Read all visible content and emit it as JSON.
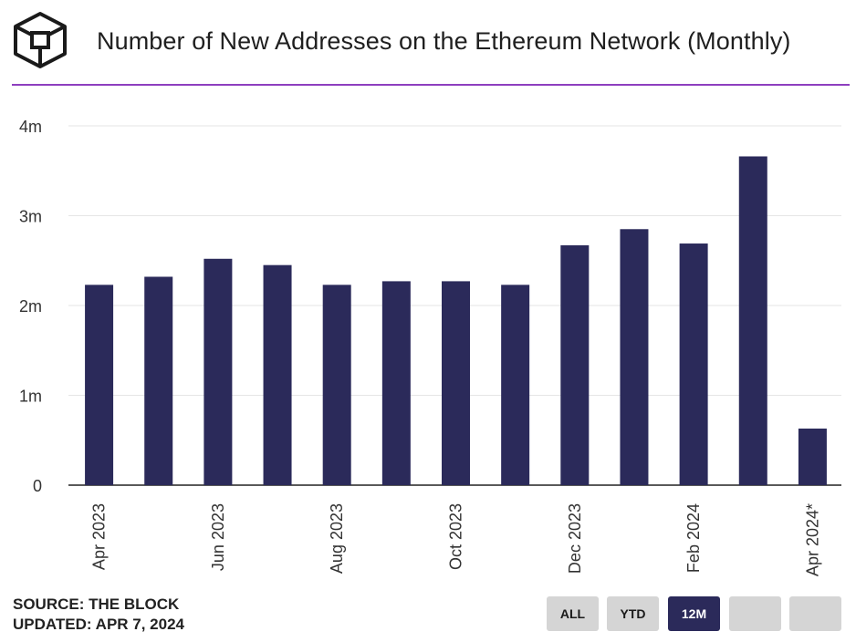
{
  "header": {
    "title": "Number of New Addresses on the Ethereum Network (Monthly)"
  },
  "colors": {
    "bar": "#2b2a5a",
    "accent": "#8e3fbf",
    "grid": "#e6e6e6"
  },
  "chart_data": {
    "type": "bar",
    "categories": [
      "Apr 2023",
      "May 2023",
      "Jun 2023",
      "Jul 2023",
      "Aug 2023",
      "Sep 2023",
      "Oct 2023",
      "Nov 2023",
      "Dec 2023",
      "Jan 2024",
      "Feb 2024",
      "Mar 2024",
      "Apr 2024*"
    ],
    "x_tick_labels": [
      "Apr 2023",
      "",
      "Jun 2023",
      "",
      "Aug 2023",
      "",
      "Oct 2023",
      "",
      "Dec 2023",
      "",
      "Feb 2024",
      "",
      "Apr 2024*"
    ],
    "values": [
      2.23,
      2.32,
      2.52,
      2.45,
      2.23,
      2.27,
      2.27,
      2.23,
      2.67,
      2.85,
      2.69,
      3.66,
      0.63
    ],
    "unit": "m",
    "ylim": [
      0,
      4
    ],
    "y_ticks": [
      0,
      1,
      2,
      3,
      4
    ],
    "y_tick_labels": [
      "0",
      "1m",
      "2m",
      "3m",
      "4m"
    ],
    "title": "Number of New Addresses on the Ethereum Network (Monthly)",
    "xlabel": "",
    "ylabel": "",
    "grid": true
  },
  "footer": {
    "source": "SOURCE: THE BLOCK",
    "updated": "UPDATED: APR 7, 2024"
  },
  "range_buttons": [
    {
      "label": "ALL",
      "active": false
    },
    {
      "label": "YTD",
      "active": false
    },
    {
      "label": "12M",
      "active": true
    },
    {
      "label": "",
      "active": false
    },
    {
      "label": "",
      "active": false
    }
  ]
}
